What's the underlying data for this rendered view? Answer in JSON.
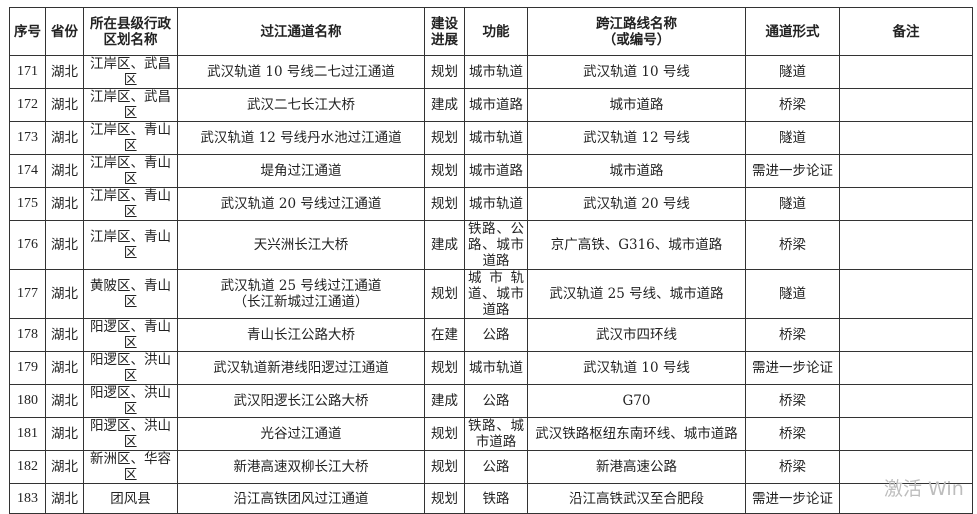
{
  "headers": [
    "序号",
    "省份",
    "所在县级行政\n区划名称",
    "过江通道名称",
    "建设\n进展",
    "功能",
    "跨江路线名称\n（或编号）",
    "通道形式",
    "备注"
  ],
  "rows": [
    [
      "171",
      "湖北",
      "江岸区、武昌区",
      "武汉轨道 10 号线二七过江通道",
      "规划",
      "城市轨道",
      "武汉轨道 10 号线",
      "隧道",
      ""
    ],
    [
      "172",
      "湖北",
      "江岸区、武昌区",
      "武汉二七长江大桥",
      "建成",
      "城市道路",
      "城市道路",
      "桥梁",
      ""
    ],
    [
      "173",
      "湖北",
      "江岸区、青山区",
      "武汉轨道 12 号线丹水池过江通道",
      "规划",
      "城市轨道",
      "武汉轨道 12 号线",
      "隧道",
      ""
    ],
    [
      "174",
      "湖北",
      "江岸区、青山区",
      "堤角过江通道",
      "规划",
      "城市道路",
      "城市道路",
      "需进一步论证",
      ""
    ],
    [
      "175",
      "湖北",
      "江岸区、青山区",
      "武汉轨道 20 号线过江通道",
      "规划",
      "城市轨道",
      "武汉轨道 20 号线",
      "隧道",
      ""
    ],
    [
      "176",
      "湖北",
      "江岸区、青山区",
      "天兴洲长江大桥",
      "建成",
      "铁路、公路、城市道路",
      "京广高铁、G316、城市道路",
      "桥梁",
      ""
    ],
    [
      "177",
      "湖北",
      "黄陂区、青山区",
      "武汉轨道 25 号线过江通道\n（长江新城过江通道）",
      "规划",
      "城市轨道、城市道路",
      "武汉轨道 25 号线、城市道路",
      "隧道",
      ""
    ],
    [
      "178",
      "湖北",
      "阳逻区、青山区",
      "青山长江公路大桥",
      "在建",
      "公路",
      "武汉市四环线",
      "桥梁",
      ""
    ],
    [
      "179",
      "湖北",
      "阳逻区、洪山区",
      "武汉轨道新港线阳逻过江通道",
      "规划",
      "城市轨道",
      "武汉轨道 10 号线",
      "需进一步论证",
      ""
    ],
    [
      "180",
      "湖北",
      "阳逻区、洪山区",
      "武汉阳逻长江公路大桥",
      "建成",
      "公路",
      "G70",
      "桥梁",
      ""
    ],
    [
      "181",
      "湖北",
      "阳逻区、洪山区",
      "光谷过江通道",
      "规划",
      "铁路、城市道路",
      "武汉铁路枢纽东南环线、城市道路",
      "桥梁",
      ""
    ],
    [
      "182",
      "湖北",
      "新洲区、华容区",
      "新港高速双柳长江大桥",
      "规划",
      "公路",
      "新港高速公路",
      "桥梁",
      ""
    ],
    [
      "183",
      "湖北",
      "团风县",
      "沿江高铁团风过江通道",
      "规划",
      "铁路",
      "沿江高铁武汉至合肥段",
      "需进一步论证",
      ""
    ]
  ],
  "watermark": "激活 Win"
}
